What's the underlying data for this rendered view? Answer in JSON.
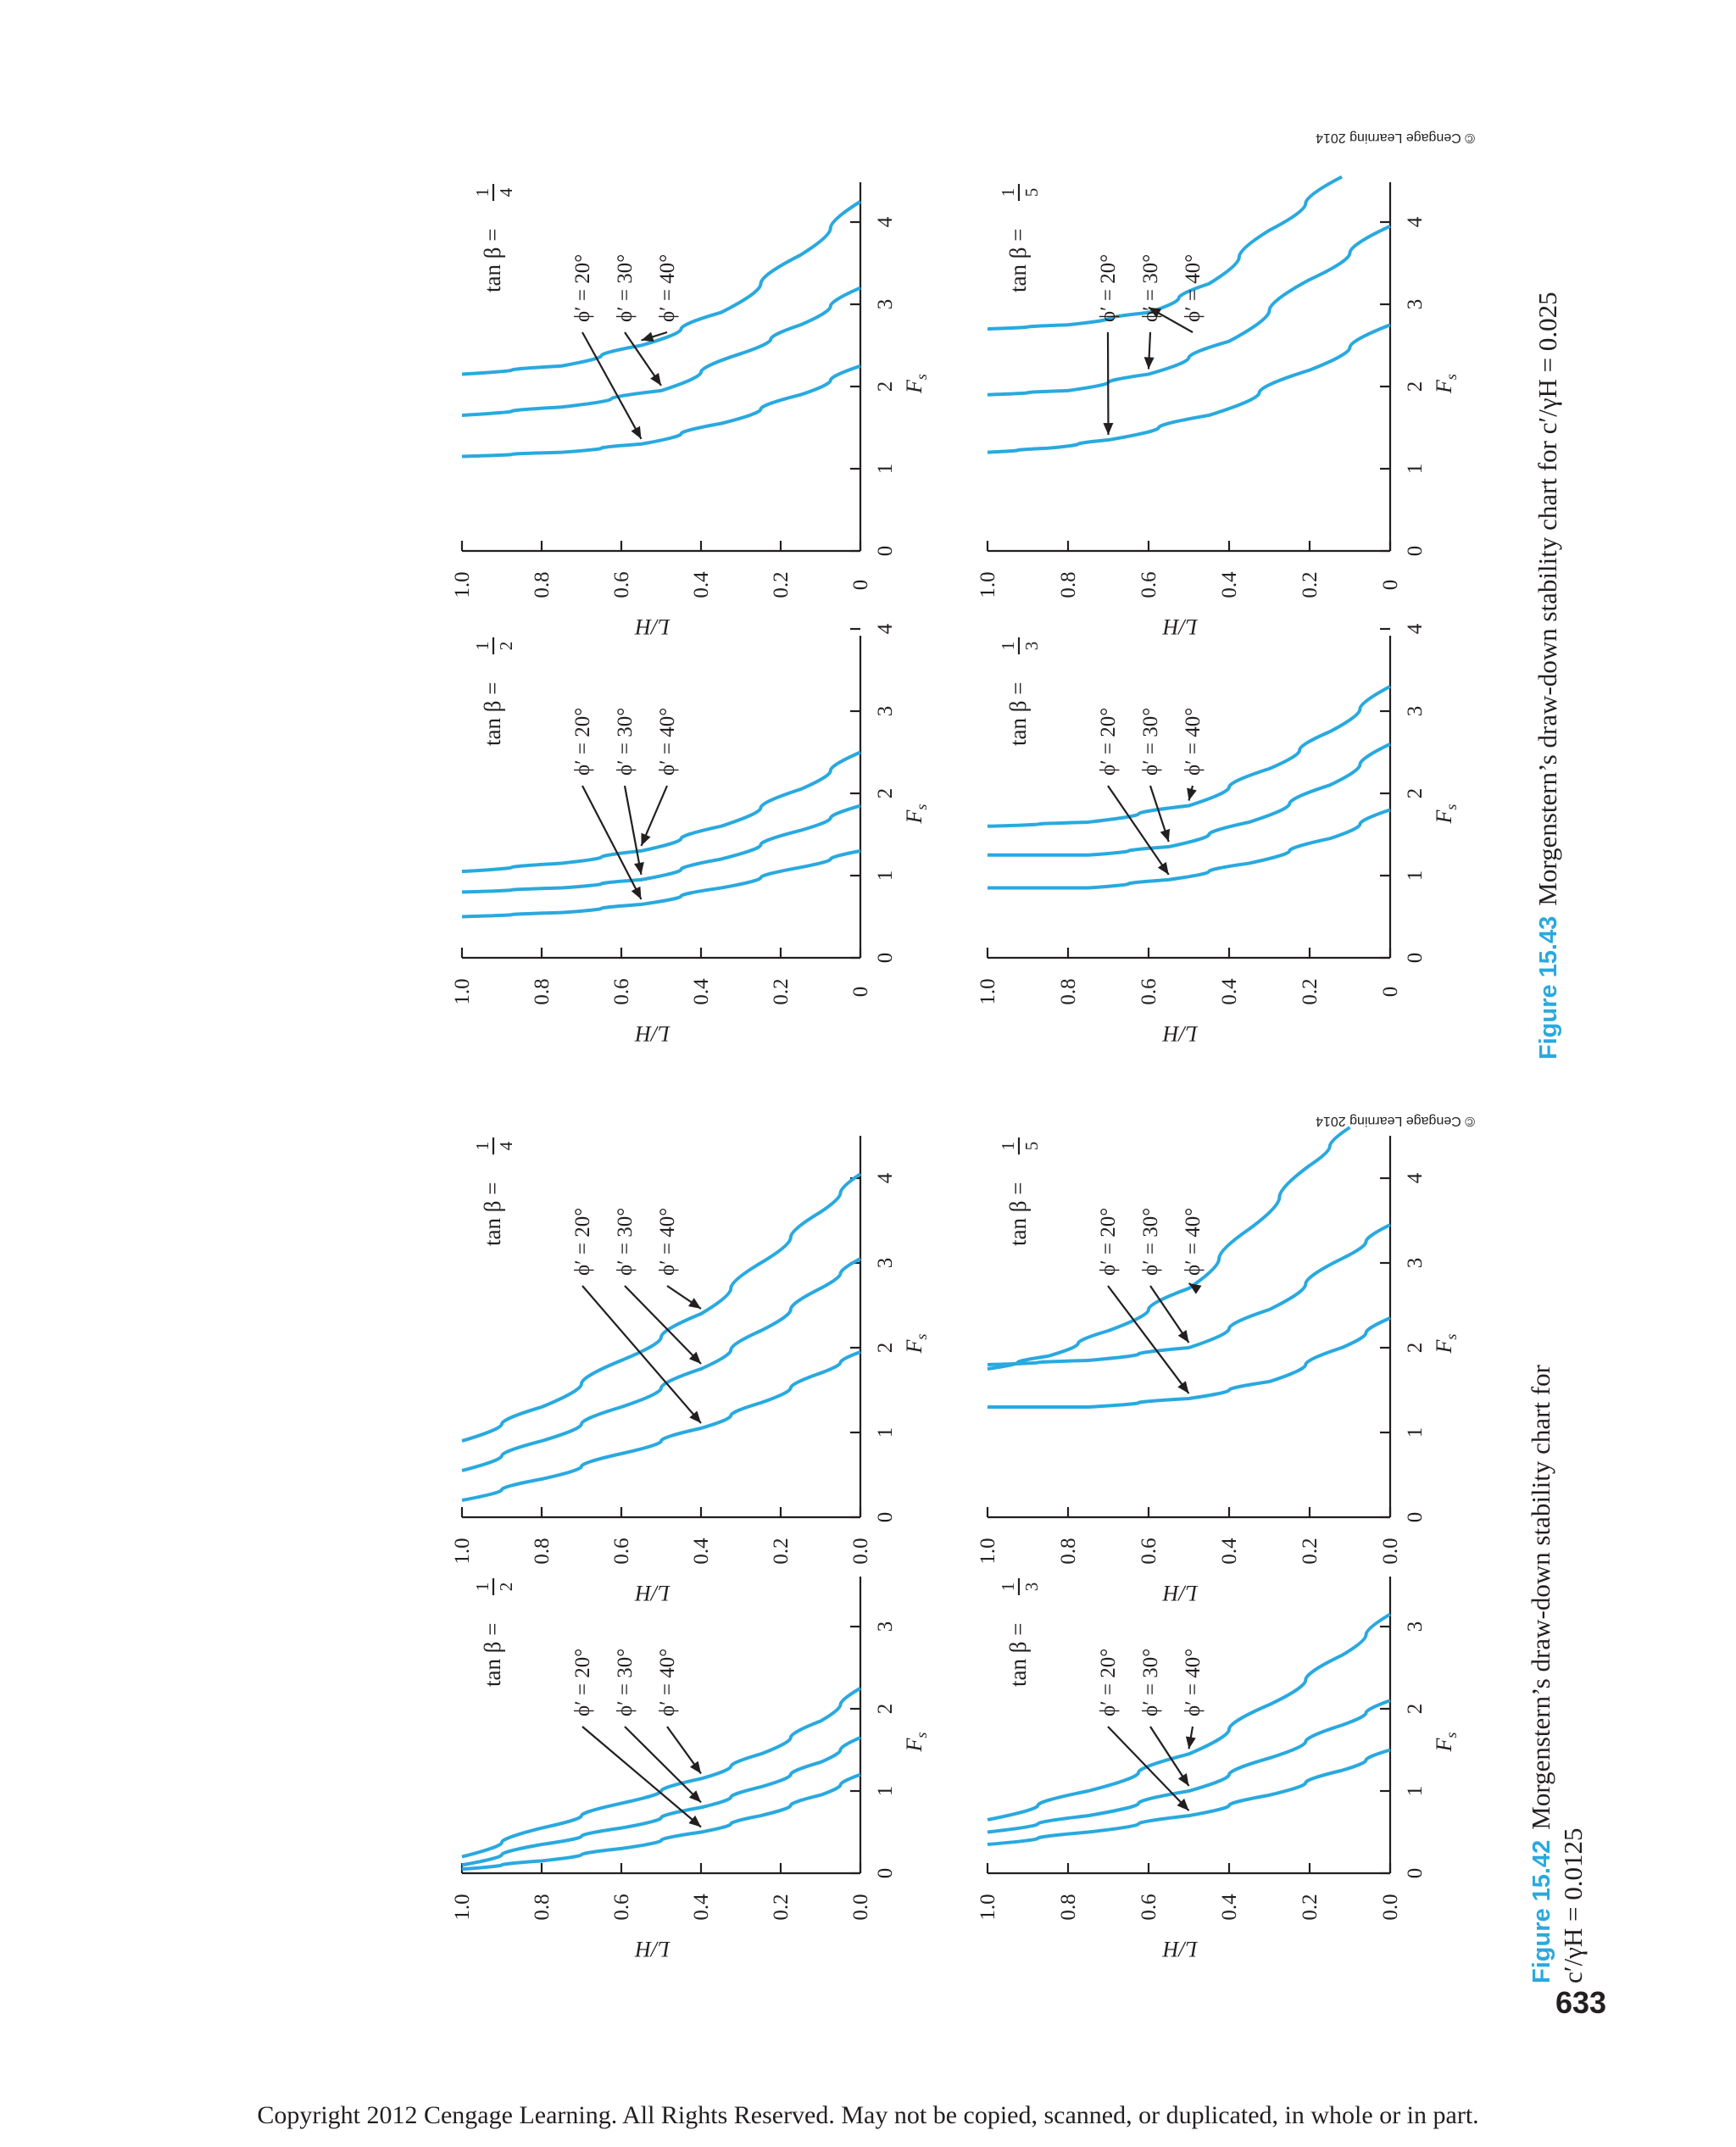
{
  "page_number": "633",
  "footer": "Copyright 2012 Cengage Learning. All Rights Reserved. May not be copied, scanned, or duplicated, in whole or in part.",
  "colors": {
    "curve": "#29a9df",
    "ink": "#231f20",
    "figure_label": "#29a9df"
  },
  "figures": [
    {
      "number": "Figure 15.42",
      "caption_line1": "Morgenstern’s draw-down stability chart for",
      "caption_line2": "c′/γH = 0.0125",
      "copyright": "© Cengage Learning 2014"
    },
    {
      "number": "Figure 15.43",
      "caption_line1": "Morgenstern’s draw-down stability chart for c′/γH = 0.025",
      "copyright": "© Cengage Learning 2014"
    }
  ],
  "chart_data": [
    {
      "figure": 0,
      "type": "line",
      "title_prefix": "tan β =",
      "slope_num": "1",
      "slope_den": "2",
      "xlabel": "F",
      "xlabel_sub": "s",
      "ylabel": "L/H",
      "xlim": [
        0,
        3
      ],
      "xticks": [
        "0",
        "1",
        "2",
        "3"
      ],
      "ylim": [
        0,
        1
      ],
      "yticks": [
        "0.0",
        "0.2",
        "0.4",
        "0.6",
        "0.8",
        "1.0"
      ],
      "phi_labels": [
        "ϕ′ = 20°",
        "ϕ′ = 30°",
        "ϕ′ = 40°"
      ],
      "series": [
        {
          "name": "ϕ′ = 20°",
          "points": [
            [
              1.2,
              0
            ],
            [
              0.95,
              0.1
            ],
            [
              0.7,
              0.25
            ],
            [
              0.5,
              0.4
            ],
            [
              0.3,
              0.6
            ],
            [
              0.15,
              0.8
            ],
            [
              0.05,
              1.0
            ]
          ]
        },
        {
          "name": "ϕ′ = 30°",
          "points": [
            [
              1.65,
              0
            ],
            [
              1.35,
              0.1
            ],
            [
              1.05,
              0.25
            ],
            [
              0.8,
              0.4
            ],
            [
              0.55,
              0.6
            ],
            [
              0.35,
              0.8
            ],
            [
              0.1,
              1.0
            ]
          ]
        },
        {
          "name": "ϕ′ = 40°",
          "points": [
            [
              2.25,
              0
            ],
            [
              1.85,
              0.1
            ],
            [
              1.45,
              0.25
            ],
            [
              1.15,
              0.4
            ],
            [
              0.85,
              0.6
            ],
            [
              0.55,
              0.8
            ],
            [
              0.2,
              1.0
            ]
          ]
        }
      ]
    },
    {
      "figure": 0,
      "type": "line",
      "title_prefix": "tan β =",
      "slope_num": "1",
      "slope_den": "4",
      "xlabel": "F",
      "xlabel_sub": "s",
      "ylabel": "L/H",
      "xlim": [
        0,
        4.5
      ],
      "xticks": [
        "0",
        "1",
        "2",
        "3",
        "4"
      ],
      "ylim": [
        0,
        1
      ],
      "yticks": [
        "0.0",
        "0.2",
        "0.4",
        "0.6",
        "0.8",
        "1.0"
      ],
      "phi_labels": [
        "ϕ′ = 20°",
        "ϕ′ = 30°",
        "ϕ′ = 40°"
      ],
      "series": [
        {
          "name": "ϕ′ = 20°",
          "points": [
            [
              1.95,
              0
            ],
            [
              1.7,
              0.1
            ],
            [
              1.35,
              0.25
            ],
            [
              1.05,
              0.4
            ],
            [
              0.75,
              0.6
            ],
            [
              0.45,
              0.8
            ],
            [
              0.2,
              1.0
            ]
          ]
        },
        {
          "name": "ϕ′ = 30°",
          "points": [
            [
              3.05,
              0
            ],
            [
              2.7,
              0.1
            ],
            [
              2.2,
              0.25
            ],
            [
              1.75,
              0.4
            ],
            [
              1.3,
              0.6
            ],
            [
              0.9,
              0.8
            ],
            [
              0.55,
              1.0
            ]
          ]
        },
        {
          "name": "ϕ′ = 40°",
          "points": [
            [
              4.05,
              0
            ],
            [
              3.6,
              0.1
            ],
            [
              3.0,
              0.25
            ],
            [
              2.4,
              0.4
            ],
            [
              1.85,
              0.6
            ],
            [
              1.3,
              0.8
            ],
            [
              0.9,
              1.0
            ]
          ]
        }
      ]
    },
    {
      "figure": 0,
      "type": "line",
      "title_prefix": "tan β =",
      "slope_num": "1",
      "slope_den": "3",
      "xlabel": "F",
      "xlabel_sub": "s",
      "ylabel": "L/H",
      "xlim": [
        0,
        3.5
      ],
      "xticks": [
        "0",
        "1",
        "2",
        "3"
      ],
      "ylim": [
        0,
        1
      ],
      "yticks": [
        "0.0",
        "0.2",
        "0.4",
        "0.6",
        "0.8",
        "1.0"
      ],
      "phi_labels": [
        "ϕ′ = 20°",
        "ϕ′ = 30°",
        "ϕ′ = 40°"
      ],
      "series": [
        {
          "name": "ϕ′ = 20°",
          "points": [
            [
              1.5,
              0
            ],
            [
              1.25,
              0.12
            ],
            [
              0.95,
              0.3
            ],
            [
              0.7,
              0.5
            ],
            [
              0.5,
              0.75
            ],
            [
              0.35,
              1.0
            ]
          ]
        },
        {
          "name": "ϕ′ = 30°",
          "points": [
            [
              2.1,
              0
            ],
            [
              1.8,
              0.12
            ],
            [
              1.4,
              0.3
            ],
            [
              1.0,
              0.5
            ],
            [
              0.7,
              0.75
            ],
            [
              0.5,
              1.0
            ]
          ]
        },
        {
          "name": "ϕ′ = 40°",
          "points": [
            [
              3.15,
              0
            ],
            [
              2.65,
              0.12
            ],
            [
              2.05,
              0.3
            ],
            [
              1.45,
              0.5
            ],
            [
              1.0,
              0.75
            ],
            [
              0.65,
              1.0
            ]
          ]
        }
      ]
    },
    {
      "figure": 0,
      "type": "line",
      "title_prefix": "tan β =",
      "slope_num": "1",
      "slope_den": "5",
      "xlabel": "F",
      "xlabel_sub": "s",
      "ylabel": "L/H",
      "xlim": [
        0,
        4.5
      ],
      "xticks": [
        "0",
        "1",
        "2",
        "3",
        "4"
      ],
      "ylim": [
        0,
        1
      ],
      "yticks": [
        "0.0",
        "0.2",
        "0.4",
        "0.6",
        "0.8",
        "1.0"
      ],
      "phi_labels": [
        "ϕ′ = 20°",
        "ϕ′ = 30°",
        "ϕ′ = 40°"
      ],
      "series": [
        {
          "name": "ϕ′ = 20°",
          "points": [
            [
              2.35,
              0
            ],
            [
              2.0,
              0.12
            ],
            [
              1.6,
              0.3
            ],
            [
              1.4,
              0.5
            ],
            [
              1.3,
              0.75
            ],
            [
              1.3,
              1.0
            ]
          ]
        },
        {
          "name": "ϕ′ = 30°",
          "points": [
            [
              3.45,
              0
            ],
            [
              3.05,
              0.12
            ],
            [
              2.45,
              0.3
            ],
            [
              2.0,
              0.5
            ],
            [
              1.85,
              0.75
            ],
            [
              1.8,
              1.0
            ]
          ]
        },
        {
          "name": "ϕ′ = 40°",
          "points": [
            [
              4.6,
              0.1
            ],
            [
              4.15,
              0.2
            ],
            [
              3.4,
              0.35
            ],
            [
              2.7,
              0.5
            ],
            [
              2.2,
              0.7
            ],
            [
              1.9,
              0.85
            ],
            [
              1.75,
              1.0
            ]
          ]
        }
      ]
    },
    {
      "figure": 1,
      "type": "line",
      "title_prefix": "tan β =",
      "slope_num": "1",
      "slope_den": "2",
      "xlabel": "F",
      "xlabel_sub": "s",
      "ylabel": "L/H",
      "xlim": [
        0,
        4
      ],
      "xticks": [
        "0",
        "1",
        "2",
        "3",
        "4"
      ],
      "ylim": [
        0,
        1
      ],
      "yticks": [
        "0",
        "0.2",
        "0.4",
        "0.6",
        "0.8",
        "1.0"
      ],
      "phi_labels": [
        "ϕ′ = 20°",
        "ϕ′ = 30°",
        "ϕ′ = 40°"
      ],
      "series": [
        {
          "name": "ϕ′ = 20°",
          "points": [
            [
              1.3,
              0
            ],
            [
              1.1,
              0.15
            ],
            [
              0.85,
              0.35
            ],
            [
              0.65,
              0.55
            ],
            [
              0.55,
              0.75
            ],
            [
              0.5,
              1.0
            ]
          ]
        },
        {
          "name": "ϕ′ = 30°",
          "points": [
            [
              1.85,
              0
            ],
            [
              1.55,
              0.15
            ],
            [
              1.2,
              0.35
            ],
            [
              0.95,
              0.55
            ],
            [
              0.85,
              0.75
            ],
            [
              0.8,
              1.0
            ]
          ]
        },
        {
          "name": "ϕ′ = 40°",
          "points": [
            [
              2.5,
              0
            ],
            [
              2.05,
              0.15
            ],
            [
              1.6,
              0.35
            ],
            [
              1.3,
              0.55
            ],
            [
              1.15,
              0.75
            ],
            [
              1.05,
              1.0
            ]
          ]
        }
      ]
    },
    {
      "figure": 1,
      "type": "line",
      "title_prefix": "tan β =",
      "slope_num": "1",
      "slope_den": "4",
      "xlabel": "F",
      "xlabel_sub": "s",
      "ylabel": "L/H",
      "xlim": [
        0,
        4.5
      ],
      "xticks": [
        "0",
        "1",
        "2",
        "3",
        "4"
      ],
      "ylim": [
        0,
        1
      ],
      "yticks": [
        "0",
        "0.2",
        "0.4",
        "0.6",
        "0.8",
        "1.0"
      ],
      "phi_labels": [
        "ϕ′ = 20°",
        "ϕ′ = 30°",
        "ϕ′ = 40°"
      ],
      "series": [
        {
          "name": "ϕ′ = 20°",
          "points": [
            [
              2.25,
              0
            ],
            [
              1.9,
              0.15
            ],
            [
              1.55,
              0.35
            ],
            [
              1.3,
              0.55
            ],
            [
              1.2,
              0.75
            ],
            [
              1.15,
              1.0
            ]
          ]
        },
        {
          "name": "ϕ′ = 30°",
          "points": [
            [
              3.2,
              0
            ],
            [
              2.75,
              0.15
            ],
            [
              2.4,
              0.3
            ],
            [
              1.95,
              0.5
            ],
            [
              1.75,
              0.75
            ],
            [
              1.65,
              1.0
            ]
          ]
        },
        {
          "name": "ϕ′ = 40°",
          "points": [
            [
              4.25,
              0
            ],
            [
              3.6,
              0.15
            ],
            [
              2.9,
              0.35
            ],
            [
              2.5,
              0.55
            ],
            [
              2.25,
              0.75
            ],
            [
              2.15,
              1.0
            ]
          ]
        }
      ]
    },
    {
      "figure": 1,
      "type": "line",
      "title_prefix": "tan β =",
      "slope_num": "1",
      "slope_den": "3",
      "xlabel": "F",
      "xlabel_sub": "s",
      "ylabel": "L/H",
      "xlim": [
        0,
        4
      ],
      "xticks": [
        "0",
        "1",
        "2",
        "3",
        "4"
      ],
      "ylim": [
        0,
        1
      ],
      "yticks": [
        "0",
        "0.2",
        "0.4",
        "0.6",
        "0.8",
        "1.0"
      ],
      "phi_labels": [
        "ϕ′ = 20°",
        "ϕ′ = 30°",
        "ϕ′ = 40°"
      ],
      "series": [
        {
          "name": "ϕ′ = 20°",
          "points": [
            [
              1.8,
              0
            ],
            [
              1.45,
              0.15
            ],
            [
              1.15,
              0.35
            ],
            [
              0.95,
              0.55
            ],
            [
              0.85,
              0.75
            ],
            [
              0.85,
              1.0
            ]
          ]
        },
        {
          "name": "ϕ′ = 30°",
          "points": [
            [
              2.6,
              0
            ],
            [
              2.1,
              0.15
            ],
            [
              1.65,
              0.35
            ],
            [
              1.35,
              0.55
            ],
            [
              1.25,
              0.75
            ],
            [
              1.25,
              1.0
            ]
          ]
        },
        {
          "name": "ϕ′ = 40°",
          "points": [
            [
              3.3,
              0
            ],
            [
              2.75,
              0.15
            ],
            [
              2.3,
              0.3
            ],
            [
              1.85,
              0.5
            ],
            [
              1.65,
              0.75
            ],
            [
              1.6,
              1.0
            ]
          ]
        }
      ]
    },
    {
      "figure": 1,
      "type": "line",
      "title_prefix": "tan β =",
      "slope_num": "1",
      "slope_den": "5",
      "xlabel": "F",
      "xlabel_sub": "s",
      "ylabel": "L/H",
      "xlim": [
        0,
        4.5
      ],
      "xticks": [
        "0",
        "1",
        "2",
        "3",
        "4"
      ],
      "ylim": [
        0,
        1
      ],
      "yticks": [
        "0",
        "0.2",
        "0.4",
        "0.6",
        "0.8",
        "1.0"
      ],
      "phi_labels": [
        "ϕ′ = 20°",
        "ϕ′ = 30°",
        "ϕ′ = 40°"
      ],
      "series": [
        {
          "name": "ϕ′ = 20°",
          "points": [
            [
              2.75,
              0
            ],
            [
              2.2,
              0.2
            ],
            [
              1.65,
              0.45
            ],
            [
              1.35,
              0.7
            ],
            [
              1.25,
              0.85
            ],
            [
              1.2,
              1.0
            ]
          ]
        },
        {
          "name": "ϕ′ = 30°",
          "points": [
            [
              3.95,
              0
            ],
            [
              3.3,
              0.2
            ],
            [
              2.55,
              0.4
            ],
            [
              2.15,
              0.6
            ],
            [
              1.95,
              0.8
            ],
            [
              1.9,
              1.0
            ]
          ]
        },
        {
          "name": "ϕ′ = 40°",
          "points": [
            [
              4.55,
              0.12
            ],
            [
              3.9,
              0.3
            ],
            [
              3.25,
              0.45
            ],
            [
              2.9,
              0.6
            ],
            [
              2.75,
              0.8
            ],
            [
              2.7,
              1.0
            ]
          ]
        }
      ]
    }
  ]
}
